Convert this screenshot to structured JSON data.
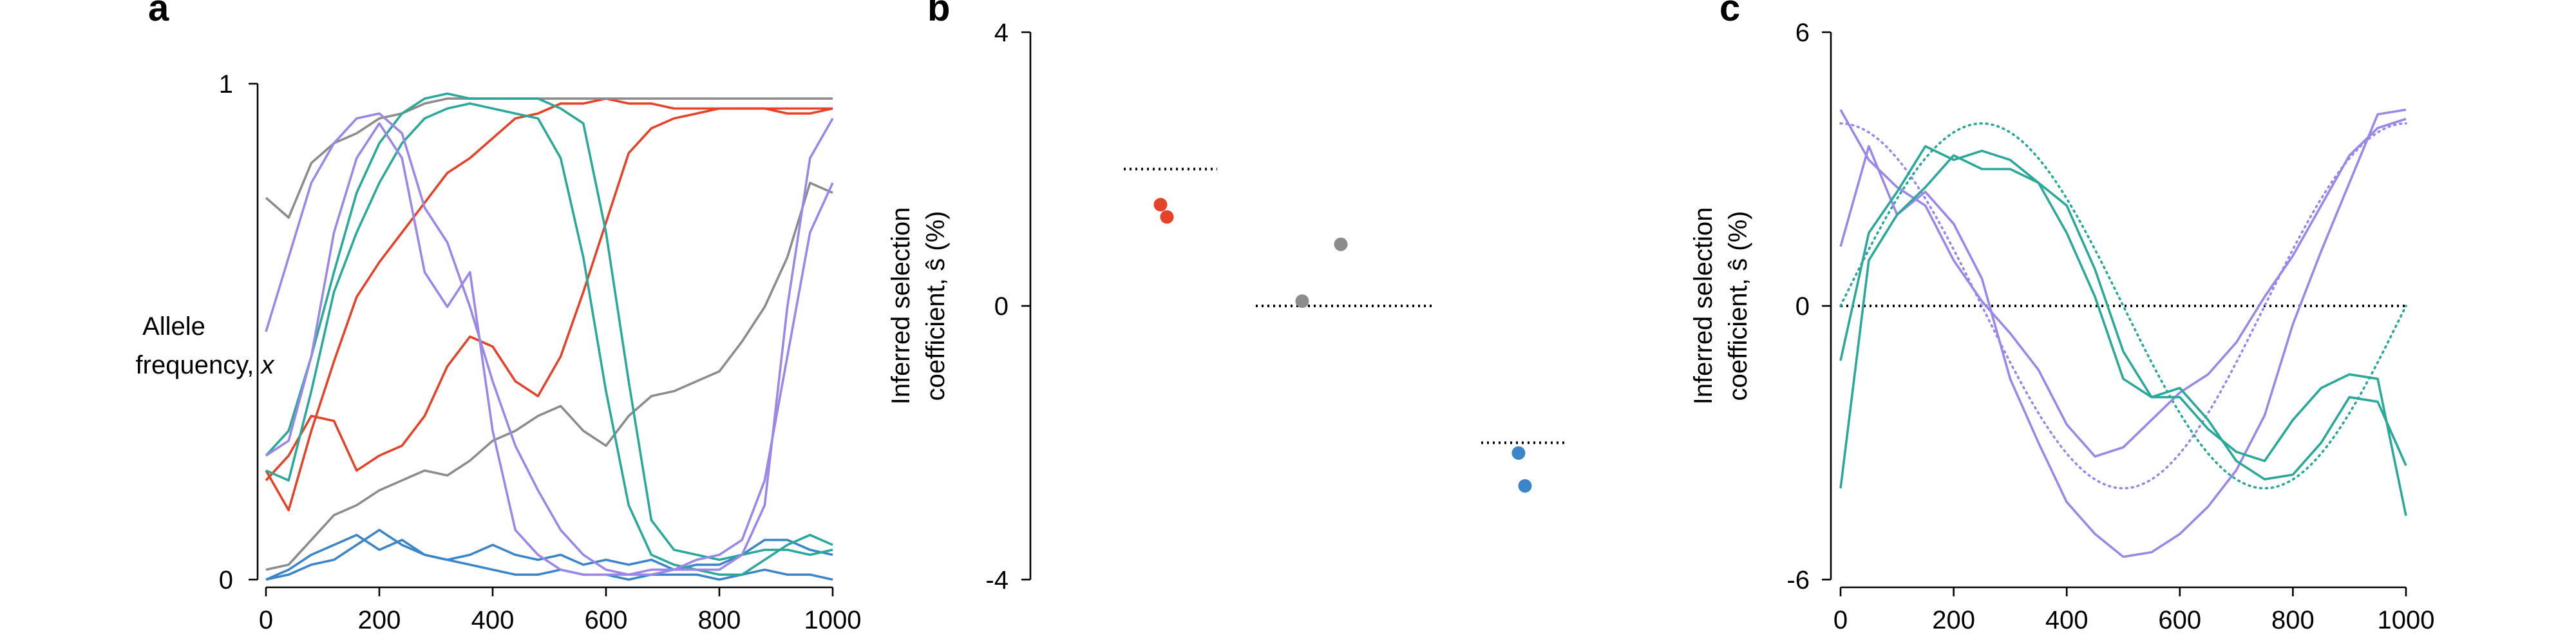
{
  "panels": {
    "a": {
      "letter": "a",
      "ylabel_line1": "Allele",
      "ylabel_line2_prefix": "frequency, ",
      "ylabel_line2_var": "x",
      "yticks": [
        "0",
        "1"
      ],
      "xticks": [
        "0",
        "200",
        "400",
        "600",
        "800",
        "1000"
      ]
    },
    "b": {
      "letter": "b",
      "ylabel_line1": "Inferred selection",
      "ylabel_line2": "coefficient, ŝ (%)",
      "yticks": [
        "-4",
        "0",
        "4"
      ]
    },
    "c": {
      "letter": "c",
      "ylabel_line1": "Inferred selection",
      "ylabel_line2": "coefficient, ŝ (%)",
      "yticks": [
        "-6",
        "0",
        "6"
      ],
      "xticks": [
        "0",
        "200",
        "400",
        "600",
        "800",
        "1000"
      ]
    }
  },
  "colors": {
    "red": "#e4432a",
    "gray": "#8c8c8c",
    "blue": "#3a86c8",
    "teal": "#2aa89a",
    "purple": "#9b87e8"
  },
  "chart_data": [
    {
      "panel": "a",
      "type": "line",
      "xlim": [
        0,
        1000
      ],
      "ylim": [
        0,
        1
      ],
      "series": [
        {
          "color": "red",
          "x": [
            0,
            40,
            80,
            120,
            160,
            200,
            240,
            280,
            320,
            360,
            400,
            440,
            480,
            520,
            560,
            600,
            640,
            680,
            720,
            760,
            800,
            840,
            880,
            920,
            960,
            1000
          ],
          "y": [
            0.22,
            0.14,
            0.3,
            0.44,
            0.57,
            0.64,
            0.7,
            0.76,
            0.82,
            0.85,
            0.89,
            0.93,
            0.94,
            0.96,
            0.96,
            0.97,
            0.96,
            0.96,
            0.95,
            0.95,
            0.95,
            0.95,
            0.95,
            0.95,
            0.95,
            0.95
          ]
        },
        {
          "color": "red",
          "x": [
            0,
            40,
            80,
            120,
            160,
            200,
            240,
            280,
            320,
            360,
            400,
            440,
            480,
            520,
            560,
            600,
            640,
            680,
            720,
            760,
            800,
            840,
            880,
            920,
            960,
            1000
          ],
          "y": [
            0.2,
            0.25,
            0.33,
            0.32,
            0.22,
            0.25,
            0.27,
            0.33,
            0.43,
            0.49,
            0.47,
            0.4,
            0.37,
            0.45,
            0.58,
            0.72,
            0.86,
            0.91,
            0.93,
            0.94,
            0.95,
            0.95,
            0.95,
            0.94,
            0.94,
            0.95
          ]
        },
        {
          "color": "gray",
          "x": [
            0,
            40,
            80,
            120,
            160,
            200,
            240,
            280,
            320,
            360,
            400,
            440,
            480,
            520,
            560,
            600,
            640,
            680,
            720,
            760,
            800,
            840,
            880,
            920,
            960,
            1000
          ],
          "y": [
            0.77,
            0.73,
            0.84,
            0.88,
            0.9,
            0.93,
            0.94,
            0.96,
            0.97,
            0.97,
            0.97,
            0.97,
            0.97,
            0.97,
            0.97,
            0.97,
            0.97,
            0.97,
            0.97,
            0.97,
            0.97,
            0.97,
            0.97,
            0.97,
            0.97,
            0.97
          ]
        },
        {
          "color": "gray",
          "x": [
            0,
            40,
            80,
            120,
            160,
            200,
            240,
            280,
            320,
            360,
            400,
            440,
            480,
            520,
            560,
            600,
            640,
            680,
            720,
            760,
            800,
            840,
            880,
            920,
            960,
            1000
          ],
          "y": [
            0.02,
            0.03,
            0.08,
            0.13,
            0.15,
            0.18,
            0.2,
            0.22,
            0.21,
            0.24,
            0.28,
            0.3,
            0.33,
            0.35,
            0.3,
            0.27,
            0.33,
            0.37,
            0.38,
            0.4,
            0.42,
            0.48,
            0.55,
            0.65,
            0.8,
            0.78
          ]
        },
        {
          "color": "blue",
          "x": [
            0,
            40,
            80,
            120,
            160,
            200,
            240,
            280,
            320,
            360,
            400,
            440,
            480,
            520,
            560,
            600,
            640,
            680,
            720,
            760,
            800,
            840,
            880,
            920,
            960,
            1000
          ],
          "y": [
            0.0,
            0.02,
            0.05,
            0.07,
            0.09,
            0.06,
            0.08,
            0.05,
            0.04,
            0.05,
            0.07,
            0.05,
            0.04,
            0.05,
            0.03,
            0.04,
            0.03,
            0.04,
            0.02,
            0.03,
            0.03,
            0.05,
            0.08,
            0.08,
            0.06,
            0.05
          ]
        },
        {
          "color": "blue",
          "x": [
            0,
            40,
            80,
            120,
            160,
            200,
            240,
            280,
            320,
            360,
            400,
            440,
            480,
            520,
            560,
            600,
            640,
            680,
            720,
            760,
            800,
            840,
            880,
            920,
            960,
            1000
          ],
          "y": [
            0.0,
            0.01,
            0.03,
            0.04,
            0.07,
            0.1,
            0.07,
            0.05,
            0.04,
            0.03,
            0.02,
            0.01,
            0.01,
            0.02,
            0.01,
            0.01,
            0.0,
            0.01,
            0.01,
            0.01,
            0.0,
            0.01,
            0.02,
            0.01,
            0.01,
            0.0
          ]
        },
        {
          "color": "teal",
          "x": [
            0,
            40,
            80,
            120,
            160,
            200,
            240,
            280,
            320,
            360,
            400,
            440,
            480,
            520,
            560,
            600,
            640,
            680,
            720,
            760,
            800,
            840,
            880,
            920,
            960,
            1000
          ],
          "y": [
            0.25,
            0.3,
            0.45,
            0.62,
            0.78,
            0.88,
            0.94,
            0.97,
            0.98,
            0.97,
            0.97,
            0.97,
            0.97,
            0.95,
            0.92,
            0.7,
            0.4,
            0.12,
            0.06,
            0.05,
            0.04,
            0.05,
            0.06,
            0.06,
            0.05,
            0.06
          ]
        },
        {
          "color": "teal",
          "x": [
            0,
            40,
            80,
            120,
            160,
            200,
            240,
            280,
            320,
            360,
            400,
            440,
            480,
            520,
            560,
            600,
            640,
            680,
            720,
            760,
            800,
            840,
            880,
            920,
            960,
            1000
          ],
          "y": [
            0.22,
            0.2,
            0.38,
            0.58,
            0.7,
            0.8,
            0.88,
            0.93,
            0.95,
            0.96,
            0.95,
            0.94,
            0.93,
            0.85,
            0.65,
            0.38,
            0.15,
            0.05,
            0.03,
            0.02,
            0.01,
            0.01,
            0.04,
            0.07,
            0.09,
            0.07
          ]
        },
        {
          "color": "purple",
          "x": [
            0,
            40,
            80,
            120,
            160,
            200,
            240,
            280,
            320,
            360,
            400,
            440,
            480,
            520,
            560,
            600,
            640,
            680,
            720,
            760,
            800,
            840,
            880,
            920,
            960,
            1000
          ],
          "y": [
            0.5,
            0.65,
            0.8,
            0.88,
            0.93,
            0.94,
            0.9,
            0.75,
            0.68,
            0.55,
            0.4,
            0.27,
            0.18,
            0.1,
            0.05,
            0.02,
            0.01,
            0.01,
            0.02,
            0.02,
            0.02,
            0.05,
            0.15,
            0.55,
            0.85,
            0.93
          ]
        },
        {
          "color": "purple",
          "x": [
            0,
            40,
            80,
            120,
            160,
            200,
            240,
            280,
            320,
            360,
            400,
            440,
            480,
            520,
            560,
            600,
            640,
            680,
            720,
            760,
            800,
            840,
            880,
            920,
            960,
            1000
          ],
          "y": [
            0.25,
            0.28,
            0.45,
            0.7,
            0.85,
            0.92,
            0.85,
            0.62,
            0.55,
            0.62,
            0.3,
            0.1,
            0.05,
            0.02,
            0.01,
            0.01,
            0.01,
            0.02,
            0.02,
            0.04,
            0.05,
            0.08,
            0.2,
            0.45,
            0.7,
            0.8
          ]
        }
      ]
    },
    {
      "panel": "b",
      "type": "scatter",
      "ylim": [
        -4,
        4
      ],
      "true_values": [
        {
          "color": "red",
          "y": 2
        },
        {
          "color": "gray",
          "y": 0
        },
        {
          "color": "blue",
          "y": -2
        }
      ],
      "points": [
        {
          "color": "red",
          "y": 1.48
        },
        {
          "color": "red",
          "y": 1.3
        },
        {
          "color": "gray",
          "y": 0.07
        },
        {
          "color": "gray",
          "y": 0.9
        },
        {
          "color": "blue",
          "y": -2.15
        },
        {
          "color": "blue",
          "y": -2.63
        }
      ]
    },
    {
      "panel": "c",
      "type": "line",
      "xlim": [
        0,
        1000
      ],
      "ylim": [
        -6,
        6
      ],
      "zero_line": 0,
      "true_curves": [
        {
          "color": "purple",
          "amplitude": 4,
          "period": 1000,
          "phase": "cos"
        },
        {
          "color": "teal",
          "amplitude": 4,
          "period": 1000,
          "phase": "sin"
        }
      ],
      "series": [
        {
          "color": "purple",
          "x": [
            0,
            50,
            100,
            150,
            200,
            250,
            300,
            350,
            400,
            450,
            500,
            550,
            600,
            650,
            700,
            750,
            800,
            850,
            900,
            950,
            1000
          ],
          "y": [
            4.3,
            3.2,
            2.6,
            2.2,
            1.0,
            0.1,
            -0.6,
            -1.4,
            -2.6,
            -3.3,
            -3.1,
            -2.5,
            -1.9,
            -1.5,
            -0.8,
            0.2,
            1.1,
            2.2,
            3.3,
            3.9,
            4.1
          ]
        },
        {
          "color": "purple",
          "x": [
            0,
            50,
            100,
            150,
            200,
            250,
            300,
            350,
            400,
            450,
            500,
            550,
            600,
            650,
            700,
            750,
            800,
            850,
            900,
            950,
            1000
          ],
          "y": [
            1.3,
            3.5,
            2.0,
            2.5,
            1.8,
            0.6,
            -1.6,
            -3.0,
            -4.3,
            -5.0,
            -5.5,
            -5.4,
            -5.0,
            -4.4,
            -3.6,
            -2.4,
            -0.4,
            1.2,
            2.7,
            4.2,
            4.3
          ]
        },
        {
          "color": "teal",
          "x": [
            0,
            50,
            100,
            150,
            200,
            250,
            300,
            350,
            400,
            450,
            500,
            550,
            600,
            650,
            700,
            750,
            800,
            850,
            900,
            950,
            1000
          ],
          "y": [
            -1.2,
            1.6,
            2.5,
            3.5,
            3.2,
            3.4,
            3.2,
            2.7,
            1.6,
            0.2,
            -1.6,
            -2.0,
            -2.0,
            -2.7,
            -3.2,
            -3.4,
            -2.5,
            -1.8,
            -1.5,
            -1.6,
            -4.6
          ]
        },
        {
          "color": "teal",
          "x": [
            0,
            50,
            100,
            150,
            200,
            250,
            300,
            350,
            400,
            450,
            500,
            550,
            600,
            650,
            700,
            750,
            800,
            850,
            900,
            950,
            1000
          ],
          "y": [
            -4.0,
            1.0,
            2.0,
            2.6,
            3.3,
            3.0,
            3.0,
            2.7,
            2.2,
            0.8,
            -1.0,
            -2.0,
            -1.8,
            -2.5,
            -3.4,
            -3.8,
            -3.7,
            -3.0,
            -2.0,
            -2.1,
            -3.5
          ]
        }
      ]
    }
  ]
}
